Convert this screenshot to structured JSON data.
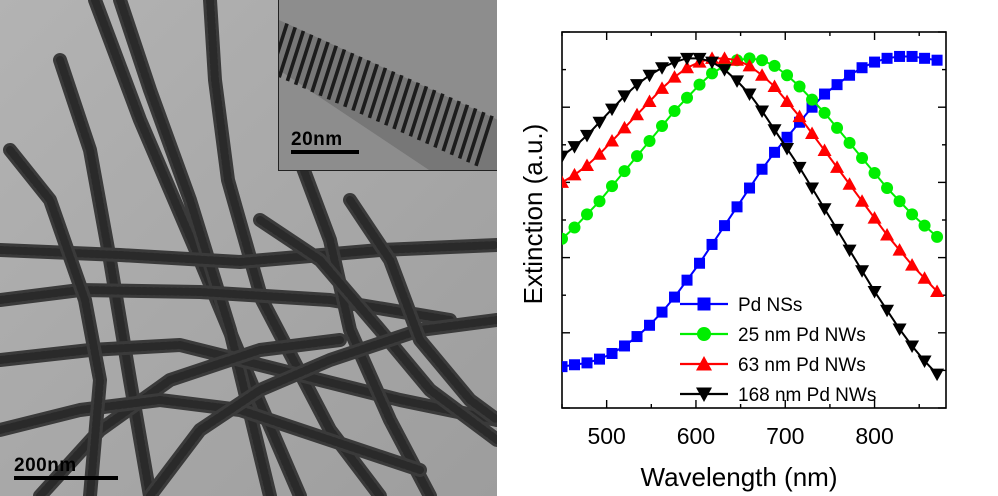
{
  "tem": {
    "main_scalebar_label": "200nm",
    "inset_scalebar_label": "20nm"
  },
  "chart_data": {
    "type": "line",
    "xlabel": "Wavelength (nm)",
    "ylabel": "Extinction (a.u.)",
    "xlim": [
      450,
      880
    ],
    "ylim": [
      0,
      1
    ],
    "x_ticks": [
      500,
      600,
      700,
      800
    ],
    "y_ticks_shown": false,
    "legend_position": "bottom-right",
    "series": [
      {
        "name": "Pd NSs",
        "color": "#0000ff",
        "marker": "square",
        "x": [
          450,
          464,
          478,
          492,
          506,
          520,
          534,
          548,
          562,
          576,
          590,
          604,
          618,
          632,
          646,
          660,
          674,
          688,
          702,
          716,
          730,
          744,
          758,
          772,
          786,
          800,
          814,
          828,
          842,
          856,
          870
        ],
        "y": [
          0.11,
          0.115,
          0.12,
          0.13,
          0.145,
          0.165,
          0.19,
          0.22,
          0.255,
          0.295,
          0.34,
          0.385,
          0.435,
          0.485,
          0.535,
          0.585,
          0.635,
          0.68,
          0.72,
          0.76,
          0.8,
          0.835,
          0.86,
          0.885,
          0.905,
          0.92,
          0.93,
          0.935,
          0.935,
          0.93,
          0.925
        ]
      },
      {
        "name": "25 nm Pd NWs",
        "color": "#00ee00",
        "marker": "circle",
        "x": [
          450,
          464,
          478,
          492,
          506,
          520,
          534,
          548,
          562,
          576,
          590,
          604,
          618,
          632,
          646,
          660,
          674,
          688,
          702,
          716,
          730,
          744,
          758,
          772,
          786,
          800,
          814,
          828,
          842,
          856,
          870
        ],
        "y": [
          0.45,
          0.48,
          0.515,
          0.55,
          0.59,
          0.63,
          0.67,
          0.71,
          0.75,
          0.79,
          0.825,
          0.86,
          0.89,
          0.91,
          0.925,
          0.93,
          0.925,
          0.91,
          0.885,
          0.855,
          0.82,
          0.785,
          0.745,
          0.705,
          0.665,
          0.625,
          0.585,
          0.55,
          0.515,
          0.485,
          0.455
        ]
      },
      {
        "name": "63 nm Pd NWs",
        "color": "#ff0000",
        "marker": "triangle-up",
        "x": [
          450,
          464,
          478,
          492,
          506,
          520,
          534,
          548,
          562,
          576,
          590,
          604,
          618,
          632,
          646,
          660,
          674,
          688,
          702,
          716,
          730,
          744,
          758,
          772,
          786,
          800,
          814,
          828,
          842,
          856,
          870
        ],
        "y": [
          0.6,
          0.62,
          0.645,
          0.675,
          0.71,
          0.745,
          0.78,
          0.815,
          0.85,
          0.88,
          0.905,
          0.92,
          0.93,
          0.93,
          0.925,
          0.91,
          0.885,
          0.855,
          0.815,
          0.775,
          0.73,
          0.685,
          0.64,
          0.595,
          0.55,
          0.505,
          0.46,
          0.42,
          0.38,
          0.345,
          0.31
        ]
      },
      {
        "name": "168 nm Pd NWs",
        "color": "#000000",
        "marker": "triangle-down",
        "x": [
          450,
          464,
          478,
          492,
          506,
          520,
          534,
          548,
          562,
          576,
          590,
          604,
          618,
          632,
          646,
          660,
          674,
          688,
          702,
          716,
          730,
          744,
          758,
          772,
          786,
          800,
          814,
          828,
          842,
          856,
          870
        ],
        "y": [
          0.67,
          0.695,
          0.725,
          0.76,
          0.795,
          0.83,
          0.86,
          0.885,
          0.905,
          0.92,
          0.93,
          0.93,
          0.92,
          0.9,
          0.87,
          0.835,
          0.79,
          0.74,
          0.69,
          0.64,
          0.585,
          0.53,
          0.475,
          0.42,
          0.365,
          0.31,
          0.26,
          0.21,
          0.165,
          0.125,
          0.09
        ]
      }
    ]
  }
}
